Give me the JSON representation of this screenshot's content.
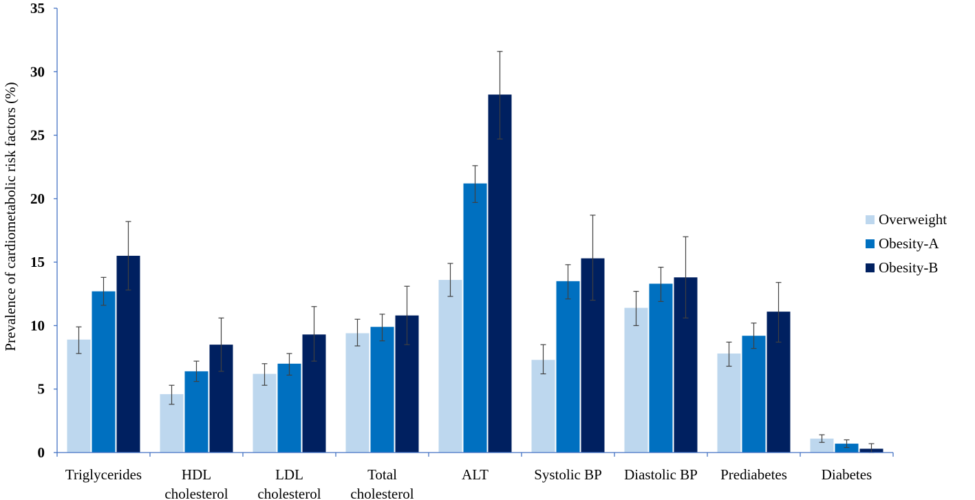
{
  "chart_data": {
    "type": "bar",
    "title": "",
    "xlabel": "",
    "ylabel": "Prevalence of cardiometabolic risk factors (%)",
    "ylim": [
      0,
      35
    ],
    "yticks": [
      0,
      5,
      10,
      15,
      20,
      25,
      30,
      35
    ],
    "grid": false,
    "legend_position": "right",
    "categories": [
      [
        "Triglycerides"
      ],
      [
        "HDL",
        "cholesterol"
      ],
      [
        "LDL",
        "cholesterol"
      ],
      [
        "Total",
        "cholesterol"
      ],
      [
        "ALT"
      ],
      [
        "Systolic BP"
      ],
      [
        "Diastolic BP"
      ],
      [
        "Prediabetes"
      ],
      [
        "Diabetes"
      ]
    ],
    "series": [
      {
        "name": "Overweight",
        "color": "#bdd7ee",
        "values": [
          8.9,
          4.6,
          6.2,
          9.4,
          13.6,
          7.3,
          11.4,
          7.8,
          1.1
        ],
        "error_low": [
          7.8,
          3.8,
          5.3,
          8.4,
          12.3,
          6.2,
          10.0,
          6.8,
          0.8
        ],
        "error_high": [
          9.9,
          5.3,
          7.0,
          10.5,
          14.9,
          8.5,
          12.7,
          8.7,
          1.4
        ]
      },
      {
        "name": "Obesity-A",
        "color": "#0070c0",
        "values": [
          12.7,
          6.4,
          7.0,
          9.9,
          21.2,
          13.5,
          13.3,
          9.2,
          0.7
        ],
        "error_low": [
          11.6,
          5.6,
          6.1,
          8.8,
          19.7,
          12.1,
          11.9,
          8.2,
          0.4
        ],
        "error_high": [
          13.8,
          7.2,
          7.8,
          10.9,
          22.6,
          14.8,
          14.6,
          10.2,
          1.0
        ]
      },
      {
        "name": "Obesity-B",
        "color": "#002060",
        "values": [
          15.5,
          8.5,
          9.3,
          10.8,
          28.2,
          15.3,
          13.8,
          11.1,
          0.3
        ],
        "error_low": [
          12.8,
          6.4,
          7.2,
          8.5,
          24.7,
          12.0,
          10.6,
          8.7,
          0.0
        ],
        "error_high": [
          18.2,
          10.6,
          11.5,
          13.1,
          31.6,
          18.7,
          17.0,
          13.4,
          0.7
        ]
      }
    ]
  }
}
